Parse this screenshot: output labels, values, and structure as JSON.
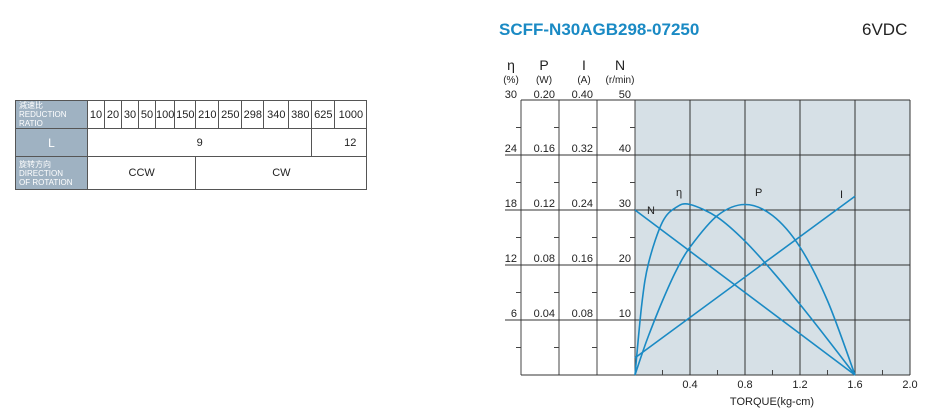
{
  "title": "SCFF-N30AGB298-07250",
  "voltage": "6VDC",
  "spec_table": {
    "ratio_header": [
      "減速比",
      "REDUCTION",
      "RATIO"
    ],
    "ratios": [
      "10",
      "20",
      "30",
      "50",
      "100",
      "150",
      "210",
      "250",
      "298",
      "340",
      "380",
      "625",
      "1000"
    ],
    "length_header": "L",
    "length_values": [
      "9",
      "12"
    ],
    "direction_header": [
      "旋转方向",
      "DIRECTION",
      "OF ROTATION"
    ],
    "directions": [
      "CCW",
      "CW"
    ]
  },
  "chart_data": {
    "type": "line",
    "xlabel": "TORQUE(kg-cm)",
    "xlim": [
      0,
      2.0
    ],
    "xticks": [
      "0.4",
      "0.8",
      "1.2",
      "1.6",
      "2.0"
    ],
    "grid": true,
    "plot_background": "#d6e0e6",
    "line_color": "#1a8ac4",
    "axes": [
      {
        "symbol": "η",
        "unit": "(%)",
        "ylim": [
          0,
          30
        ],
        "ticks": [
          "30",
          "24",
          "18",
          "12",
          "6"
        ]
      },
      {
        "symbol": "P",
        "unit": "(W)",
        "ylim": [
          0,
          0.2
        ],
        "ticks": [
          "0.20",
          "0.16",
          "0.12",
          "0.08",
          "0.04"
        ]
      },
      {
        "symbol": "I",
        "unit": "(A)",
        "ylim": [
          0,
          0.4
        ],
        "ticks": [
          "0.40",
          "0.32",
          "0.24",
          "0.16",
          "0.08"
        ]
      },
      {
        "symbol": "N",
        "unit": "(r/min)",
        "ylim": [
          0,
          50
        ],
        "ticks": [
          "50",
          "40",
          "30",
          "20",
          "10"
        ]
      }
    ],
    "series": [
      {
        "name": "η",
        "axis": 0,
        "x": [
          0,
          0.05,
          0.1,
          0.2,
          0.3,
          0.4,
          0.6,
          0.8,
          1.0,
          1.2,
          1.4,
          1.6
        ],
        "y": [
          0,
          7.8,
          12.3,
          16.7,
          18.3,
          18.6,
          17.2,
          14.6,
          11.3,
          7.7,
          3.9,
          0
        ]
      },
      {
        "name": "P",
        "axis": 1,
        "x": [
          0,
          0.05,
          0.1,
          0.2,
          0.3,
          0.4,
          0.6,
          0.8,
          1.0,
          1.2,
          1.4,
          1.6
        ],
        "y": [
          0,
          0.015,
          0.029,
          0.054,
          0.076,
          0.093,
          0.116,
          0.124,
          0.116,
          0.093,
          0.054,
          0
        ]
      },
      {
        "name": "I",
        "axis": 2,
        "x": [
          0,
          1.6
        ],
        "y": [
          0.025,
          0.26
        ]
      },
      {
        "name": "N",
        "axis": 3,
        "x": [
          0,
          1.6
        ],
        "y": [
          30,
          0
        ]
      }
    ]
  }
}
